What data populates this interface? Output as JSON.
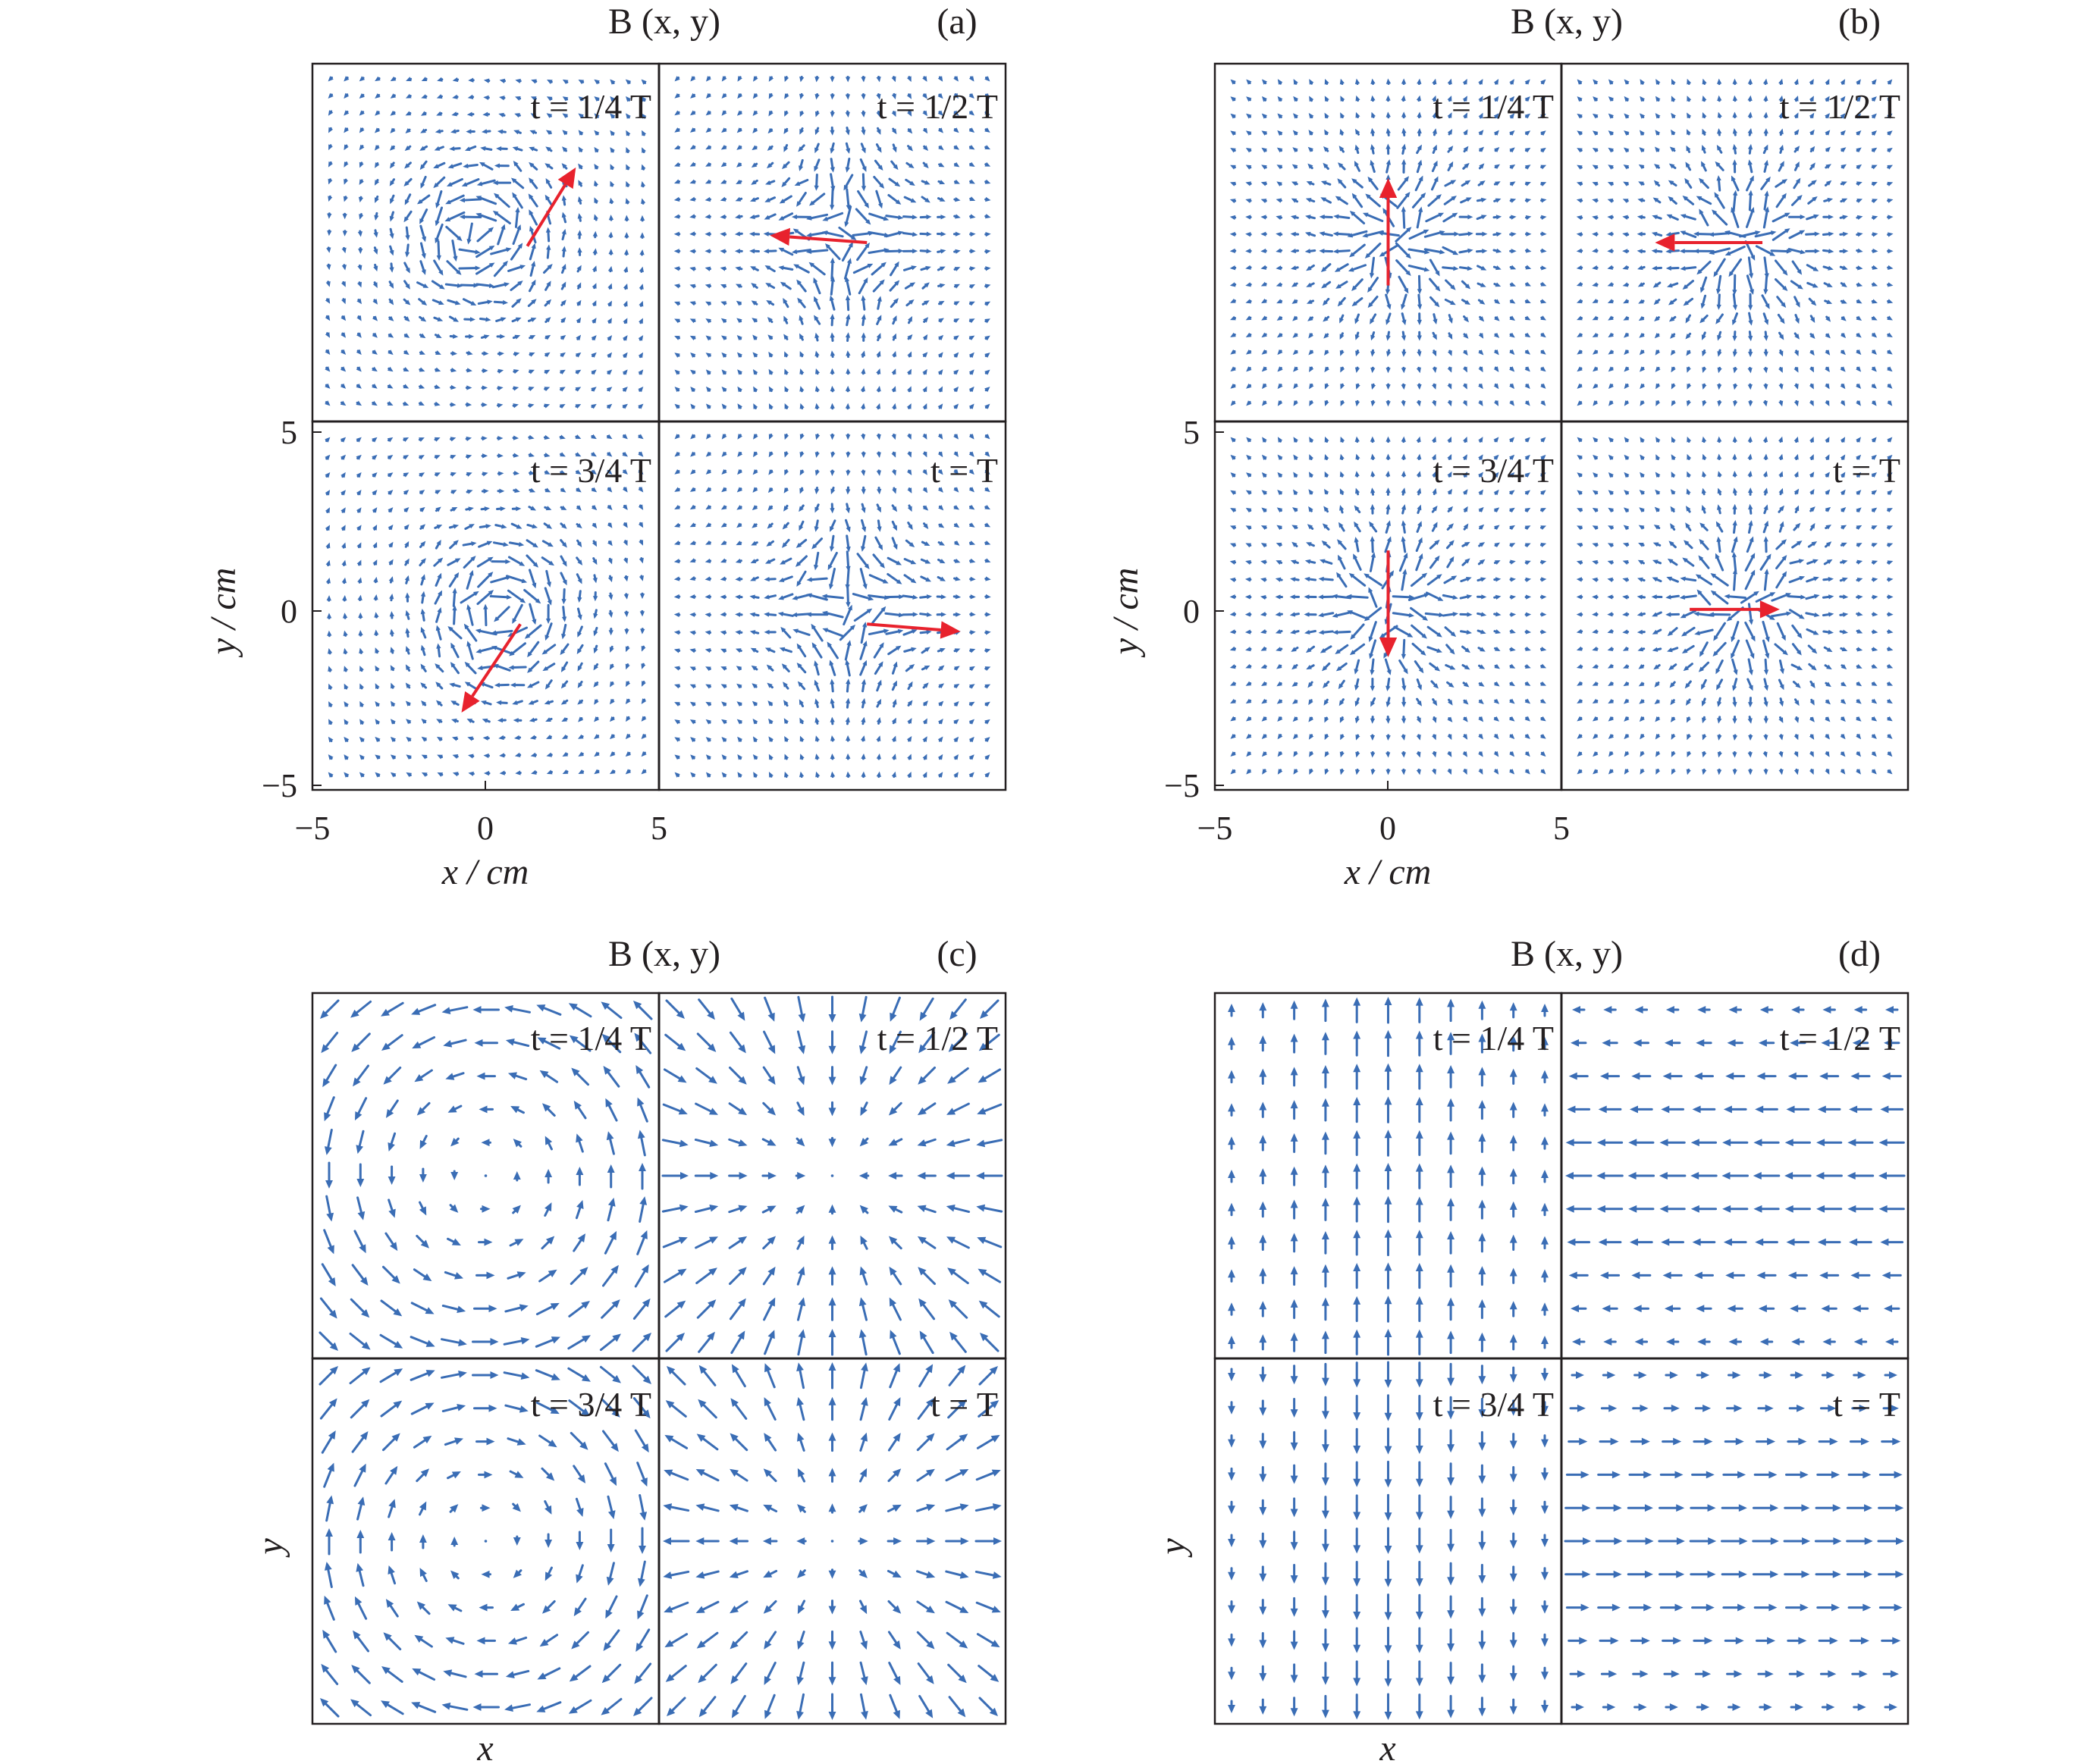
{
  "figure": {
    "panels": [
      {
        "id": "a",
        "label": "(a)",
        "title": "B (x, y)",
        "kind": "measured",
        "axes": true
      },
      {
        "id": "b",
        "label": "(b)",
        "title": "B (x, y)",
        "kind": "measured",
        "axes": true
      },
      {
        "id": "c",
        "label": "(c)",
        "title": "B (x, y)",
        "kind": "model",
        "axes": false
      },
      {
        "id": "d",
        "label": "(d)",
        "title": "B (x, y)",
        "kind": "model",
        "axes": false
      }
    ],
    "time_labels": [
      "t = 1/4 T",
      "t = 1/2 T",
      "t = 3/4 T",
      "t = T"
    ],
    "axis_units": {
      "xlabel": "x / cm",
      "ylabel": "y / cm",
      "xlabel_plain": "x",
      "ylabel_plain": "y"
    },
    "ticks": {
      "x": [
        "−5",
        "0",
        "5"
      ],
      "y": [
        "5",
        "0",
        "−5"
      ]
    }
  },
  "chart_data": [
    {
      "type": "quiver",
      "panel": "(a)",
      "title": "B (x, y)",
      "xlabel": "x / cm",
      "ylabel": "y / cm",
      "xlim": [
        -5,
        5
      ],
      "ylim": [
        -5,
        5
      ],
      "subplots": [
        {
          "time": "t = 1/4 T",
          "field": "vortex",
          "center": [
            -0.2,
            0.3
          ],
          "sense": "ccw",
          "red_arrow": {
            "from": [
              1.2,
              -0.1
            ],
            "to": [
              2.6,
              2.1
            ]
          }
        },
        {
          "time": "t = 1/2 T",
          "field": "saddle",
          "center": [
            0.4,
            0.2
          ],
          "red_arrow": {
            "from": [
              1.0,
              0.0
            ],
            "to": [
              -1.8,
              0.2
            ]
          }
        },
        {
          "time": "t = 3/4 T",
          "field": "vortex",
          "center": [
            0.5,
            -0.2
          ],
          "sense": "cw",
          "red_arrow": {
            "from": [
              1.0,
              -0.5
            ],
            "to": [
              -0.7,
              -2.9
            ]
          }
        },
        {
          "time": "t = T",
          "field": "saddle",
          "center": [
            0.5,
            0.0
          ],
          "red_arrow": {
            "from": [
              1.0,
              -0.5
            ],
            "to": [
              3.7,
              -0.7
            ]
          }
        }
      ]
    },
    {
      "type": "quiver",
      "panel": "(b)",
      "title": "B (x, y)",
      "xlabel": "x / cm",
      "ylabel": "y / cm",
      "xlim": [
        -5,
        5
      ],
      "ylim": [
        -5,
        5
      ],
      "subplots": [
        {
          "time": "t = 1/4 T",
          "field": "source",
          "center": [
            0.3,
            0.1
          ],
          "red_arrow": {
            "from": [
              0.0,
              -1.2
            ],
            "to": [
              0.0,
              1.8
            ]
          }
        },
        {
          "time": "t = 1/2 T",
          "field": "source",
          "center": [
            0.3,
            0.0
          ],
          "red_arrow": {
            "from": [
              0.8,
              0.0
            ],
            "to": [
              -2.3,
              0.0
            ]
          }
        },
        {
          "time": "t = 3/4 T",
          "field": "source",
          "center": [
            0.0,
            0.0
          ],
          "red_arrow": {
            "from": [
              0.0,
              1.5
            ],
            "to": [
              0.0,
              -1.4
            ]
          }
        },
        {
          "time": "t = T",
          "field": "source",
          "center": [
            0.3,
            0.0
          ],
          "red_arrow": {
            "from": [
              -1.3,
              -0.1
            ],
            "to": [
              1.3,
              -0.1
            ]
          }
        }
      ]
    },
    {
      "type": "quiver",
      "panel": "(c)",
      "title": "B (x, y)",
      "xlabel": "x",
      "ylabel": "y",
      "subplots": [
        {
          "time": "t = 1/4 T",
          "field": "vortex",
          "center": [
            0.0,
            0.0
          ],
          "sense": "ccw"
        },
        {
          "time": "t = 1/2 T",
          "field": "sink",
          "center": [
            0.0,
            0.0
          ]
        },
        {
          "time": "t = 3/4 T",
          "field": "vortex",
          "center": [
            0.0,
            0.0
          ],
          "sense": "cw"
        },
        {
          "time": "t = T",
          "field": "source",
          "center": [
            0.0,
            0.0
          ]
        }
      ]
    },
    {
      "type": "quiver",
      "panel": "(d)",
      "title": "B (x, y)",
      "xlabel": "x",
      "ylabel": "y",
      "subplots": [
        {
          "time": "t = 1/4 T",
          "field": "uniform",
          "direction": "up"
        },
        {
          "time": "t = 1/2 T",
          "field": "uniform",
          "direction": "left"
        },
        {
          "time": "t = 3/4 T",
          "field": "uniform",
          "direction": "down"
        },
        {
          "time": "t = T",
          "field": "uniform",
          "direction": "right"
        }
      ]
    }
  ]
}
